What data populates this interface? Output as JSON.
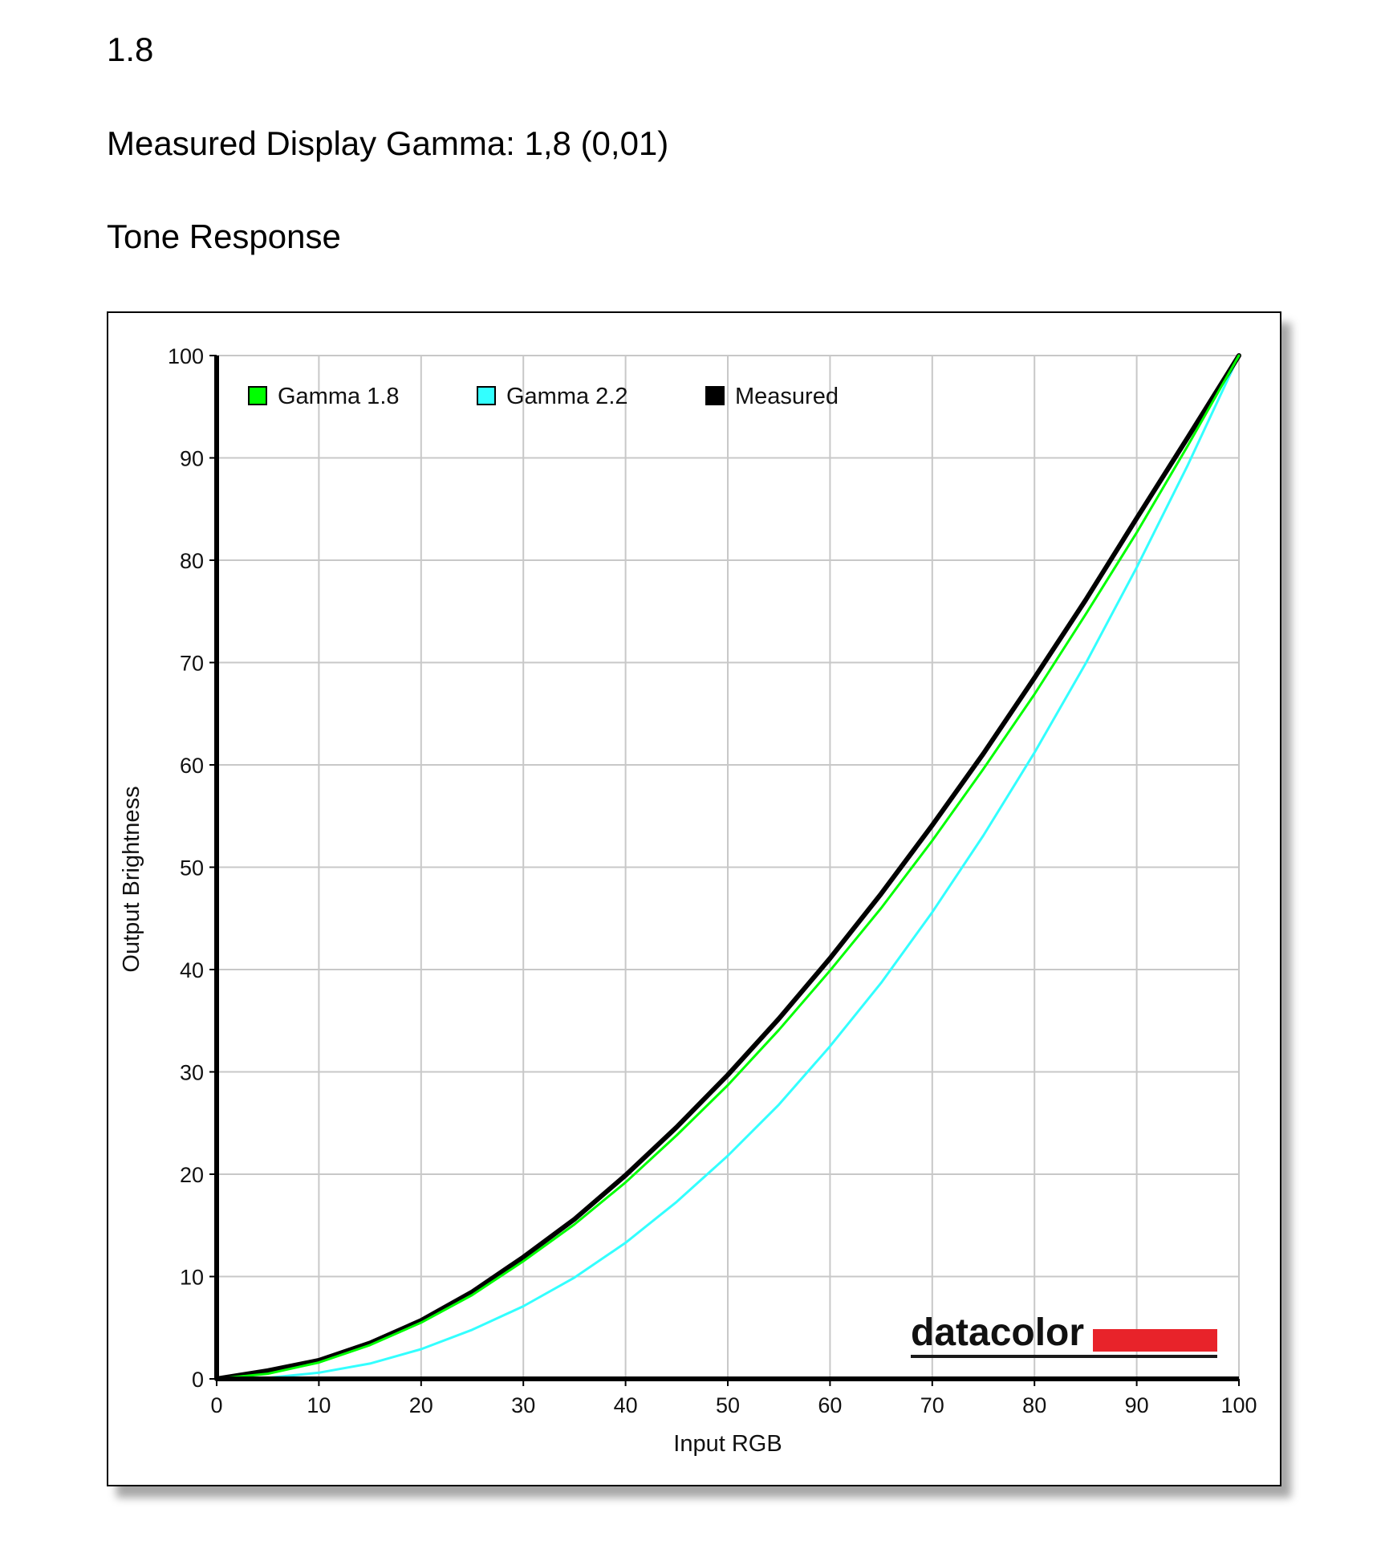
{
  "header": {
    "value": "1.8",
    "measured": "Measured Display Gamma: 1,8 (0,01)",
    "section_title": "Tone Response"
  },
  "chart_data": {
    "type": "line",
    "title": "",
    "xlabel": "Input RGB",
    "ylabel": "Output Brightness",
    "xlim": [
      0,
      100
    ],
    "ylim": [
      0,
      100
    ],
    "xticks": [
      "0",
      "10",
      "20",
      "30",
      "40",
      "50",
      "60",
      "70",
      "80",
      "90",
      "100"
    ],
    "yticks": [
      "0",
      "10",
      "20",
      "30",
      "40",
      "50",
      "60",
      "70",
      "80",
      "90",
      "100"
    ],
    "grid": true,
    "legend_position": "top-left",
    "x": [
      0,
      5,
      10,
      15,
      20,
      25,
      30,
      35,
      40,
      45,
      50,
      55,
      60,
      65,
      70,
      75,
      80,
      85,
      90,
      95,
      100
    ],
    "series": [
      {
        "name": "Gamma 1.8",
        "color": "#00ff00",
        "values": [
          0,
          0.5,
          1.6,
          3.3,
          5.5,
          8.2,
          11.5,
          15.1,
          19.2,
          23.8,
          28.7,
          34.1,
          39.9,
          46.0,
          52.6,
          59.6,
          66.9,
          74.7,
          82.7,
          91.2,
          100
        ]
      },
      {
        "name": "Gamma 2.2",
        "color": "#33ffff",
        "values": [
          0,
          0.1,
          0.6,
          1.5,
          2.9,
          4.8,
          7.1,
          9.9,
          13.3,
          17.3,
          21.8,
          26.8,
          32.5,
          38.7,
          45.6,
          53.1,
          61.2,
          69.9,
          79.3,
          89.3,
          100
        ]
      },
      {
        "name": "Measured",
        "color": "#000000",
        "values": [
          0,
          0.8,
          1.8,
          3.5,
          5.7,
          8.5,
          11.9,
          15.6,
          19.9,
          24.6,
          29.7,
          35.2,
          41.1,
          47.4,
          54.1,
          61.1,
          68.5,
          76.1,
          84.1,
          92.0,
          100
        ]
      }
    ]
  },
  "logo": {
    "text": "datacolor",
    "bar_color": "#e8232a"
  }
}
